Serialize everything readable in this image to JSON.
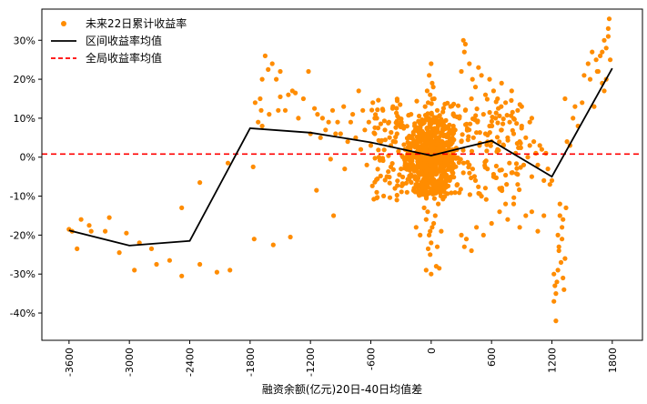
{
  "chart_data": {
    "type": "scatter",
    "title": "",
    "xlabel": "融资余额(亿元)20日-40日均值差",
    "ylabel": "",
    "xlim": [
      -3870,
      2100
    ],
    "ylim": [
      -0.47,
      0.38
    ],
    "x_ticks": [
      -3600,
      -3000,
      -2400,
      -1800,
      -1200,
      -600,
      0,
      600,
      1200,
      1800
    ],
    "y_ticks": [
      -0.4,
      -0.3,
      -0.2,
      -0.1,
      0.0,
      0.1,
      0.2,
      0.3
    ],
    "y_tick_labels": [
      "-40%",
      "-30%",
      "-20%",
      "-10%",
      "0%",
      "10%",
      "20%",
      "30%"
    ],
    "legend": {
      "position": "top-left",
      "entries": [
        "未来22日累计收益率",
        "区间收益率均值",
        "全局收益率均值"
      ]
    },
    "series": [
      {
        "name": "未来22日累计收益率",
        "kind": "scatter",
        "color": "#ff8c00",
        "points": [
          [
            -3600,
            -0.185
          ],
          [
            -3570,
            -0.19
          ],
          [
            -3520,
            -0.235
          ],
          [
            -3480,
            -0.16
          ],
          [
            -3400,
            -0.175
          ],
          [
            -3380,
            -0.19
          ],
          [
            -3240,
            -0.19
          ],
          [
            -3200,
            -0.155
          ],
          [
            -3100,
            -0.245
          ],
          [
            -3030,
            -0.195
          ],
          [
            -2950,
            -0.29
          ],
          [
            -2900,
            -0.22
          ],
          [
            -2780,
            -0.235
          ],
          [
            -2730,
            -0.275
          ],
          [
            -2600,
            -0.265
          ],
          [
            -2480,
            -0.305
          ],
          [
            -2480,
            -0.13
          ],
          [
            -2300,
            -0.275
          ],
          [
            -2300,
            -0.065
          ],
          [
            -2130,
            -0.295
          ],
          [
            -2000,
            -0.29
          ],
          [
            -2020,
            -0.015
          ],
          [
            -1770,
            -0.025
          ],
          [
            -1760,
            -0.21
          ],
          [
            -1750,
            0.14
          ],
          [
            -1720,
            0.09
          ],
          [
            -1700,
            0.15
          ],
          [
            -1690,
            0.12
          ],
          [
            -1680,
            0.08
          ],
          [
            -1680,
            0.2
          ],
          [
            -1650,
            0.26
          ],
          [
            -1620,
            0.225
          ],
          [
            -1610,
            0.11
          ],
          [
            -1580,
            0.24
          ],
          [
            -1570,
            -0.225
          ],
          [
            -1540,
            0.2
          ],
          [
            -1520,
            0.12
          ],
          [
            -1500,
            0.155
          ],
          [
            -1500,
            0.22
          ],
          [
            -1450,
            0.12
          ],
          [
            -1420,
            0.16
          ],
          [
            -1400,
            -0.205
          ],
          [
            -1380,
            0.17
          ],
          [
            -1350,
            0.165
          ],
          [
            -1320,
            0.1
          ],
          [
            -1270,
            0.15
          ],
          [
            -1220,
            0.22
          ],
          [
            -1200,
            0.06
          ],
          [
            -1160,
            0.125
          ],
          [
            -1140,
            -0.085
          ],
          [
            -1130,
            0.11
          ],
          [
            -1100,
            0.05
          ],
          [
            -1080,
            0.1
          ],
          [
            -1050,
            0.07
          ],
          [
            -1020,
            0.09
          ],
          [
            -1000,
            -0.005
          ],
          [
            -980,
            0.12
          ],
          [
            -970,
            -0.15
          ],
          [
            -950,
            0.06
          ],
          [
            -930,
            0.09
          ],
          [
            -900,
            0.06
          ],
          [
            -870,
            0.13
          ],
          [
            -860,
            -0.03
          ],
          [
            -830,
            0.04
          ],
          [
            -800,
            0.09
          ],
          [
            -780,
            0.11
          ],
          [
            -750,
            0.05
          ],
          [
            -720,
            0.17
          ],
          [
            -700,
            0.02
          ],
          [
            -680,
            0.12
          ],
          [
            -660,
            0.07
          ],
          [
            -640,
            -0.02
          ],
          [
            -620,
            0.09
          ],
          [
            -600,
            0.03
          ],
          [
            -580,
            0.14
          ],
          [
            -560,
            0.06
          ],
          [
            -540,
            0.1
          ],
          [
            -520,
            0.0
          ],
          [
            -500,
            0.04
          ],
          [
            -480,
            0.12
          ],
          [
            -460,
            0.07
          ],
          [
            -440,
            -0.05
          ],
          [
            -420,
            0.09
          ],
          [
            -400,
            0.03
          ],
          [
            -380,
            0.13
          ],
          [
            -360,
            -0.08
          ],
          [
            -340,
            0.06
          ],
          [
            -320,
            0.1
          ],
          [
            -300,
            -0.03
          ],
          [
            -280,
            0.08
          ],
          [
            -260,
            0.02
          ],
          [
            -240,
            -0.09
          ],
          [
            -220,
            0.05
          ],
          [
            -200,
            0.11
          ],
          [
            -180,
            -0.02
          ],
          [
            -160,
            0.07
          ],
          [
            -140,
            -0.06
          ],
          [
            -120,
            0.04
          ],
          [
            -100,
            0.09
          ],
          [
            -80,
            -0.04
          ],
          [
            -60,
            0.03
          ],
          [
            -40,
            0.06
          ],
          [
            -20,
            -0.02
          ],
          [
            0,
            0.05
          ],
          [
            20,
            0.01
          ],
          [
            40,
            -0.03
          ],
          [
            60,
            0.04
          ],
          [
            80,
            -0.01
          ],
          [
            100,
            0.06
          ],
          [
            120,
            0.02
          ],
          [
            -150,
            0.0
          ],
          [
            -130,
            0.02
          ],
          [
            -110,
            -0.01
          ],
          [
            -90,
            0.03
          ],
          [
            -70,
            0.01
          ],
          [
            -50,
            -0.02
          ],
          [
            -30,
            0.04
          ],
          [
            -10,
            0.0
          ],
          [
            10,
            -0.01
          ],
          [
            30,
            0.03
          ],
          [
            50,
            0.0
          ],
          [
            70,
            0.02
          ],
          [
            90,
            -0.02
          ],
          [
            110,
            0.01
          ],
          [
            130,
            0.03
          ],
          [
            150,
            -0.01
          ],
          [
            170,
            0.02
          ],
          [
            -170,
            0.01
          ],
          [
            -190,
            -0.01
          ],
          [
            -210,
            0.02
          ],
          [
            0,
            0.24
          ],
          [
            -20,
            0.21
          ],
          [
            10,
            0.19
          ],
          [
            -40,
            0.17
          ],
          [
            30,
            0.15
          ],
          [
            -60,
            0.13
          ],
          [
            60,
            0.12
          ],
          [
            -10,
            0.16
          ],
          [
            20,
            0.18
          ],
          [
            -30,
            0.14
          ],
          [
            -20,
            -0.2
          ],
          [
            10,
            -0.18
          ],
          [
            -50,
            -0.16
          ],
          [
            40,
            -0.15
          ],
          [
            -70,
            -0.13
          ],
          [
            70,
            -0.12
          ],
          [
            0,
            -0.22
          ],
          [
            -10,
            -0.19
          ],
          [
            25,
            -0.17
          ],
          [
            -35,
            -0.14
          ],
          [
            -50,
            -0.29
          ],
          [
            0,
            -0.3
          ],
          [
            50,
            -0.28
          ],
          [
            80,
            -0.285
          ],
          [
            -10,
            -0.25
          ],
          [
            -30,
            -0.235
          ],
          [
            60,
            -0.23
          ],
          [
            -150,
            -0.18
          ],
          [
            -110,
            -0.2
          ],
          [
            100,
            -0.19
          ],
          [
            180,
            0.06
          ],
          [
            200,
            -0.05
          ],
          [
            220,
            0.08
          ],
          [
            240,
            0.02
          ],
          [
            260,
            -0.07
          ],
          [
            280,
            0.1
          ],
          [
            300,
            0.04
          ],
          [
            320,
            -0.04
          ],
          [
            340,
            0.12
          ],
          [
            360,
            0.07
          ],
          [
            380,
            -0.02
          ],
          [
            400,
            0.15
          ],
          [
            420,
            0.05
          ],
          [
            440,
            -0.06
          ],
          [
            460,
            0.09
          ],
          [
            480,
            0.03
          ],
          [
            500,
            -0.1
          ],
          [
            520,
            0.11
          ],
          [
            540,
            0.06
          ],
          [
            560,
            -0.03
          ],
          [
            580,
            0.08
          ],
          [
            600,
            0.04
          ],
          [
            620,
            -0.05
          ],
          [
            640,
            0.1
          ],
          [
            660,
            0.02
          ],
          [
            680,
            -0.08
          ],
          [
            700,
            0.07
          ],
          [
            720,
            0.03
          ],
          [
            740,
            -0.12
          ],
          [
            760,
            0.05
          ],
          [
            780,
            0.09
          ],
          [
            800,
            -0.04
          ],
          [
            820,
            0.06
          ],
          [
            840,
            0.01
          ],
          [
            860,
            -0.07
          ],
          [
            880,
            0.04
          ],
          [
            900,
            0.08
          ],
          [
            920,
            -0.02
          ],
          [
            940,
            0.05
          ],
          [
            960,
            0.0
          ],
          [
            980,
            0.03
          ],
          [
            1000,
            -0.05
          ],
          [
            1020,
            0.04
          ],
          [
            1040,
            0.01
          ],
          [
            1060,
            -0.02
          ],
          [
            1080,
            0.03
          ],
          [
            1100,
            0.02
          ],
          [
            1120,
            -0.06
          ],
          [
            1140,
            0.01
          ],
          [
            1160,
            -0.03
          ],
          [
            320,
            0.3
          ],
          [
            340,
            0.29
          ],
          [
            330,
            0.27
          ],
          [
            380,
            0.24
          ],
          [
            300,
            0.22
          ],
          [
            410,
            0.2
          ],
          [
            440,
            0.18
          ],
          [
            470,
            0.23
          ],
          [
            500,
            0.21
          ],
          [
            540,
            0.16
          ],
          [
            580,
            0.2
          ],
          [
            620,
            0.17
          ],
          [
            660,
            0.15
          ],
          [
            700,
            0.19
          ],
          [
            740,
            0.14
          ],
          [
            800,
            0.17
          ],
          [
            860,
            0.12
          ],
          [
            900,
            0.13
          ],
          [
            980,
            0.09
          ],
          [
            1000,
            0.1
          ],
          [
            300,
            -0.2
          ],
          [
            350,
            -0.21
          ],
          [
            400,
            -0.24
          ],
          [
            330,
            -0.23
          ],
          [
            450,
            -0.18
          ],
          [
            520,
            -0.2
          ],
          [
            600,
            -0.17
          ],
          [
            680,
            -0.14
          ],
          [
            760,
            -0.16
          ],
          [
            820,
            -0.12
          ],
          [
            880,
            -0.18
          ],
          [
            940,
            -0.15
          ],
          [
            1000,
            -0.14
          ],
          [
            1060,
            -0.19
          ],
          [
            1120,
            -0.15
          ],
          [
            1180,
            -0.07
          ],
          [
            1200,
            -0.06
          ],
          [
            1220,
            -0.3
          ],
          [
            1230,
            -0.33
          ],
          [
            1220,
            -0.37
          ],
          [
            1240,
            -0.35
          ],
          [
            1250,
            -0.32
          ],
          [
            1240,
            -0.42
          ],
          [
            1260,
            -0.2
          ],
          [
            1270,
            -0.23
          ],
          [
            1280,
            -0.15
          ],
          [
            1290,
            -0.27
          ],
          [
            1300,
            -0.21
          ],
          [
            1310,
            -0.31
          ],
          [
            1320,
            -0.34
          ],
          [
            1330,
            -0.26
          ],
          [
            1300,
            -0.18
          ],
          [
            1280,
            -0.12
          ],
          [
            1310,
            -0.16
          ],
          [
            1270,
            -0.24
          ],
          [
            1260,
            -0.29
          ],
          [
            1340,
            -0.13
          ],
          [
            1350,
            0.04
          ],
          [
            1330,
            0.15
          ],
          [
            1380,
            0.03
          ],
          [
            1410,
            0.1
          ],
          [
            1430,
            0.13
          ],
          [
            1460,
            0.08
          ],
          [
            1500,
            0.14
          ],
          [
            1520,
            0.21
          ],
          [
            1560,
            0.24
          ],
          [
            1580,
            0.2
          ],
          [
            1600,
            0.27
          ],
          [
            1620,
            0.13
          ],
          [
            1640,
            0.25
          ],
          [
            1660,
            0.22
          ],
          [
            1680,
            0.26
          ],
          [
            1700,
            0.19
          ],
          [
            1720,
            0.3
          ],
          [
            1740,
            0.28
          ],
          [
            1760,
            0.33
          ],
          [
            1770,
            0.355
          ],
          [
            1760,
            0.31
          ],
          [
            1740,
            0.2
          ],
          [
            1780,
            0.25
          ],
          [
            1720,
            0.17
          ],
          [
            1700,
            0.27
          ],
          [
            1650,
            0.22
          ]
        ]
      },
      {
        "name": "区间收益率均值",
        "kind": "line",
        "color": "#000000",
        "points": [
          [
            -3600,
            -0.188
          ],
          [
            -3000,
            -0.227
          ],
          [
            -2400,
            -0.215
          ],
          [
            -1800,
            0.074
          ],
          [
            -1200,
            0.063
          ],
          [
            -600,
            0.038
          ],
          [
            0,
            0.004
          ],
          [
            600,
            0.042
          ],
          [
            1200,
            -0.05
          ],
          [
            1800,
            0.228
          ]
        ]
      },
      {
        "name": "全局收益率均值",
        "kind": "hline",
        "color": "#ff0000",
        "y": 0.008
      }
    ]
  }
}
